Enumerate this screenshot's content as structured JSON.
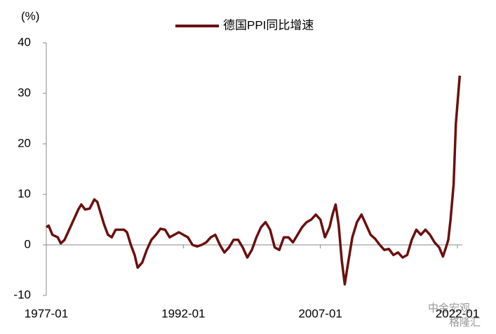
{
  "chart_data": {
    "type": "line",
    "y_label": "(%)",
    "x": [
      "1977-01",
      "1977-04",
      "1977-09",
      "1978-04",
      "1978-08",
      "1979-01",
      "1979-07",
      "1980-01",
      "1980-07",
      "1980-11",
      "1981-04",
      "1981-10",
      "1982-04",
      "1982-08",
      "1983-01",
      "1983-05",
      "1983-10",
      "1984-03",
      "1984-08",
      "1985-01",
      "1985-07",
      "1985-11",
      "1986-04",
      "1986-09",
      "1987-01",
      "1987-07",
      "1988-01",
      "1988-07",
      "1989-01",
      "1989-07",
      "1990-01",
      "1990-07",
      "1991-01",
      "1991-07",
      "1992-01",
      "1992-07",
      "1993-01",
      "1993-07",
      "1994-01",
      "1994-07",
      "1995-01",
      "1995-07",
      "1996-01",
      "1996-07",
      "1997-01",
      "1997-07",
      "1998-01",
      "1998-07",
      "1999-01",
      "1999-07",
      "2000-01",
      "2000-07",
      "2001-01",
      "2001-07",
      "2002-01",
      "2002-07",
      "2003-01",
      "2003-07",
      "2004-01",
      "2004-07",
      "2005-01",
      "2005-07",
      "2006-01",
      "2006-07",
      "2007-01",
      "2007-07",
      "2008-01",
      "2008-05",
      "2008-09",
      "2009-01",
      "2009-05",
      "2009-09",
      "2010-01",
      "2010-07",
      "2011-01",
      "2011-07",
      "2012-01",
      "2012-07",
      "2013-01",
      "2013-07",
      "2014-01",
      "2014-07",
      "2015-01",
      "2015-07",
      "2016-01",
      "2016-07",
      "2017-01",
      "2017-07",
      "2018-01",
      "2018-07",
      "2019-01",
      "2019-07",
      "2020-01",
      "2020-06",
      "2020-10",
      "2021-01",
      "2021-04",
      "2021-08",
      "2021-11",
      "2022-04"
    ],
    "series": [
      {
        "name": "德国PPI同比增速",
        "color": "#6b0f0f",
        "values": [
          3.5,
          3.8,
          2,
          1.5,
          0.3,
          1,
          3,
          5,
          7,
          8,
          7,
          7.2,
          9,
          8.5,
          6,
          4,
          2,
          1.5,
          3,
          3,
          3,
          2.5,
          0,
          -2,
          -4.5,
          -3.5,
          -1,
          1,
          2,
          3.2,
          3,
          1.5,
          2,
          2.5,
          2,
          1.5,
          0,
          -0.3,
          0,
          0.5,
          1.5,
          2,
          0,
          -1.5,
          -0.5,
          1,
          1,
          -0.5,
          -2.5,
          -1,
          1.5,
          3.5,
          4.5,
          3,
          -0.5,
          -1,
          1.5,
          1.5,
          0.5,
          2,
          3.5,
          4.5,
          5,
          6,
          5,
          1.5,
          3.5,
          6,
          8,
          4,
          -3,
          -7.8,
          -4,
          1.5,
          4.5,
          6,
          4,
          2,
          1.2,
          0,
          -1,
          -0.8,
          -2,
          -1.5,
          -2.5,
          -2,
          1,
          3,
          2,
          3,
          2,
          0.5,
          -0.5,
          -2.3,
          -0.5,
          1,
          5,
          12,
          24,
          33.5
        ]
      }
    ],
    "ylim": [
      -10,
      40
    ],
    "yticks": [
      -10,
      0,
      10,
      20,
      30,
      40
    ],
    "xlim": [
      "1977-01",
      "2022-04"
    ],
    "xticks": [
      "1977-01",
      "1992-01",
      "2007-01",
      "2022-01"
    ],
    "watermarks": [
      "中金宏观",
      "格隆汇"
    ]
  }
}
